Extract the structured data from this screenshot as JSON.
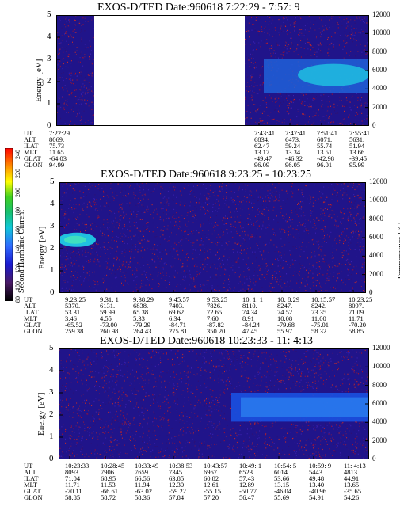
{
  "colorbar": {
    "label": "Second Harmonic Current",
    "ticks": [
      "80",
      "100",
      "120",
      "140",
      "160",
      "180",
      "200",
      "220",
      "240"
    ]
  },
  "panels": [
    {
      "title": "EXOS-D/TED   Date:960618  7:22:29 - 7:57: 9",
      "y_left_label": "Energy [eV]",
      "y_right_label": "Temperature [K]",
      "y_ticks": [
        "0",
        "1",
        "2",
        "3",
        "4",
        "5"
      ],
      "temp_ticks": [
        "0",
        "2000",
        "4000",
        "6000",
        "8000",
        "10000",
        "12000"
      ],
      "orbit_labels": [
        "UT",
        "ALT",
        "ILAT",
        "MLT",
        "GLAT",
        "GLON"
      ],
      "orbit_columns": [
        [
          "7:22:29",
          "8069.",
          "75.73",
          "11.65",
          "-64.03",
          "94.99"
        ],
        [
          "7:43:41",
          "6834.",
          "62.47",
          "13.17",
          "-49.47",
          "96.09"
        ],
        [
          "7:47:41",
          "6473.",
          "59.24",
          "13.34",
          "-46.32",
          "96.05"
        ],
        [
          "7:51:41",
          "6071.",
          "55.74",
          "13.51",
          "-42.98",
          "96.01"
        ],
        [
          "7:55:41",
          "5631.",
          "51.94",
          "13.66",
          "-39.45",
          "95.99"
        ]
      ]
    },
    {
      "title": "EXOS-D/TED   Date:960618  9:23:25 - 10:23:25",
      "y_left_label": "Energy [eV]",
      "y_right_label": "Temperature [K]",
      "y_ticks": [
        "0",
        "1",
        "2",
        "3",
        "4",
        "5"
      ],
      "temp_ticks": [
        "0",
        "2000",
        "4000",
        "6000",
        "8000",
        "10000",
        "12000"
      ],
      "orbit_labels": [
        "UT",
        "ALT",
        "ILAT",
        "MLT",
        "GLAT",
        "GLON"
      ],
      "orbit_columns": [
        [
          "9:23:25",
          "5370.",
          "53.31",
          "3.46",
          "-65.52",
          "259.38"
        ],
        [
          "9:31: 1",
          "6131.",
          "59.99",
          "4.55",
          "-73.00",
          "260.98"
        ],
        [
          "9:38:29",
          "6838.",
          "65.38",
          "5.33",
          "-79.29",
          "264.43"
        ],
        [
          "9:45:57",
          "7403.",
          "69.62",
          "6.34",
          "-84.71",
          "275.81"
        ],
        [
          "9:53:25",
          "7826.",
          "72.65",
          "7.60",
          "-87.82",
          "350.20"
        ],
        [
          "10: 1: 1",
          "8110.",
          "74.34",
          "8.91",
          "-84.24",
          "47.45"
        ],
        [
          "10: 8:29",
          "8247.",
          "74.52",
          "10.08",
          "-79.68",
          "55.97"
        ],
        [
          "10:15:57",
          "8242.",
          "73.35",
          "11.00",
          "-75.01",
          "58.32"
        ],
        [
          "10:23:25",
          "8097.",
          "71.09",
          "11.71",
          "-70.20",
          "58.85"
        ]
      ]
    },
    {
      "title": "EXOS-D/TED   Date:960618  10:23:33 - 11: 4:13",
      "y_left_label": "Energy [eV]",
      "y_right_label": "Temperature [K]",
      "y_ticks": [
        "0",
        "1",
        "2",
        "3",
        "4",
        "5"
      ],
      "temp_ticks": [
        "0",
        "2000",
        "4000",
        "6000",
        "8000",
        "10000",
        "12000"
      ],
      "orbit_labels": [
        "UT",
        "ALT",
        "ILAT",
        "MLT",
        "GLAT",
        "GLON"
      ],
      "orbit_columns": [
        [
          "10:23:33",
          "8093.",
          "71.04",
          "11.71",
          "-70.11",
          "58.85"
        ],
        [
          "10:28:45",
          "7906.",
          "68.95",
          "11.53",
          "-66.61",
          "58.72"
        ],
        [
          "10:33:49",
          "7659.",
          "66.56",
          "11.94",
          "-63.02",
          "58.36"
        ],
        [
          "10:38:53",
          "7345.",
          "63.85",
          "12.30",
          "-59.22",
          "57.84"
        ],
        [
          "10:43:57",
          "6967.",
          "60.82",
          "12.61",
          "-55.15",
          "57.20"
        ],
        [
          "10:49: 1",
          "6523.",
          "57.43",
          "12.89",
          "-50.77",
          "56.47"
        ],
        [
          "10:54: 5",
          "6014.",
          "53.66",
          "13.15",
          "-46.04",
          "55.69"
        ],
        [
          "10:59: 9",
          "5443.",
          "49.48",
          "13.40",
          "-40.96",
          "54.91"
        ],
        [
          "11: 4:13",
          "4813.",
          "44.91",
          "13.65",
          "-35.65",
          "54.26"
        ]
      ]
    }
  ],
  "chart_data": [
    {
      "type": "heatmap",
      "title": "EXOS-D/TED   Date:960618  7:22:29 - 7:57: 9",
      "xlabel": "UT",
      "ylabel": "Energy [eV]",
      "y2label": "Temperature [K]",
      "ylim": [
        0,
        5
      ],
      "y2lim": [
        0,
        12000
      ],
      "data_gap": [
        "7:25",
        "7:43:41"
      ],
      "features": [
        {
          "name": "band",
          "x_range": [
            "7:45",
            "7:57:9"
          ],
          "energy_range": [
            1.5,
            3.0
          ],
          "level": 140
        },
        {
          "name": "core",
          "x_range": [
            "7:52",
            "7:57:9"
          ],
          "energy_range": [
            1.9,
            2.7
          ],
          "level": 160
        }
      ]
    },
    {
      "type": "heatmap",
      "title": "EXOS-D/TED   Date:960618  9:23:25 - 10:23:25",
      "xlabel": "UT",
      "ylabel": "Energy [eV]",
      "y2label": "Temperature [K]",
      "ylim": [
        0,
        5
      ],
      "y2lim": [
        0,
        12000
      ],
      "features": [
        {
          "name": "band",
          "x_range": [
            "9:23:25",
            "9:28"
          ],
          "energy_range": [
            2.0,
            2.8
          ],
          "level": 160
        }
      ]
    },
    {
      "type": "heatmap",
      "title": "EXOS-D/TED   Date:960618  10:23:33 - 11: 4:13",
      "xlabel": "UT",
      "ylabel": "Energy [eV]",
      "y2label": "Temperature [K]",
      "ylim": [
        0,
        5
      ],
      "y2lim": [
        0,
        12000
      ],
      "features": [
        {
          "name": "band",
          "x_range": [
            "10:44",
            "11:4:13"
          ],
          "energy_range": [
            1.7,
            3.0
          ],
          "level": 140
        }
      ]
    }
  ]
}
